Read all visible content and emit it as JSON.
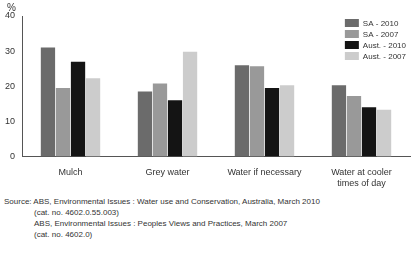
{
  "chart_data": {
    "type": "bar",
    "y_label": "%",
    "categories": [
      "Mulch",
      "Grey water",
      "Water if necessary",
      "Water at cooler times of day"
    ],
    "series": [
      {
        "name": "SA - 2010",
        "color": "#6b6b6b",
        "values": [
          31,
          18.5,
          26,
          20.3
        ]
      },
      {
        "name": "SA - 2007",
        "color": "#999999",
        "values": [
          19.5,
          20.8,
          25.7,
          17.2
        ]
      },
      {
        "name": "Aust. - 2010",
        "color": "#141414",
        "values": [
          27,
          16,
          19.5,
          14
        ]
      },
      {
        "name": "Aust. - 2007",
        "color": "#cccccc",
        "values": [
          22.3,
          29.8,
          20.3,
          13.3
        ]
      }
    ],
    "ylim": [
      0,
      40
    ],
    "yticks": [
      0,
      10,
      20,
      30,
      40
    ],
    "grid": false,
    "legend": "upper right",
    "notes": [
      "Source: ABS, Environmental Issues : Water use and Conservation, Australia, March 2010",
      "(cat. no. 4602.0.55.003)",
      "ABS, Environmental Issues : Peoples Views and Practices, March 2007",
      "(cat. no. 4602.0)"
    ]
  }
}
